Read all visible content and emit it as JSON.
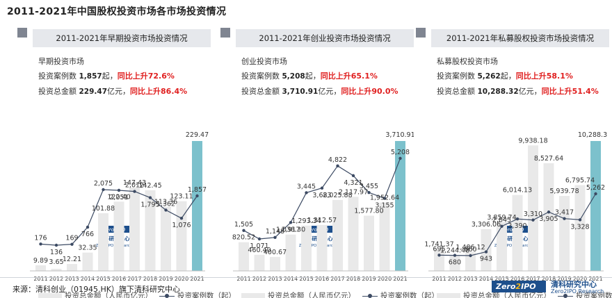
{
  "page_title": "2011-2021年中国股权投资市场各市场投资情况",
  "legend": {
    "bar_label": "投资总金额（人民币亿元）",
    "line_label": "投资案例数（起）"
  },
  "source": "来源：清科创业（01945.HK）旗下清科研究中心",
  "logo": {
    "zero": "Zero",
    "two": "2",
    "ipo": "IPO",
    "cn": "清科研究中心",
    "en": "Zero2IPO Research"
  },
  "watermark": {
    "zero": "Zero2IPO",
    "cn": "清科研究中心",
    "en": "Zero2IPO Research"
  },
  "colors": {
    "bar": "#e9e9e9",
    "bar_highlight": "#7cc1cc",
    "line": "#3c4a63"
  },
  "panels": [
    {
      "header": "2011-2021年早期投资市场投资情况",
      "market": "早期投资市场",
      "cases_prefix": "投资案例数 ",
      "cases": "1,857",
      "cases_suffix": "起，",
      "cases_growth": "同比上升72.6%",
      "amount_prefix": "投资总金额 ",
      "amount": "229.47",
      "amount_suffix": "亿元，",
      "amount_growth": "同比上升86.4%"
    },
    {
      "header": "2011-2021年创业投资市场投资情况",
      "market": "创业投资市场",
      "cases_prefix": "投资案例数 ",
      "cases": "5,208",
      "cases_suffix": "起，",
      "cases_growth": "同比上升65.1%",
      "amount_prefix": "投资总金额 ",
      "amount": "3,710.91",
      "amount_suffix": "亿元，",
      "amount_growth": "同比上升90.0%"
    },
    {
      "header": "2011-2021年私募股权投资市场投资情况",
      "market": "私募股权投资市场",
      "cases_prefix": "投资案例数 ",
      "cases": "5,262",
      "cases_suffix": "起，",
      "cases_growth": "同比上升58.1%",
      "amount_prefix": "投资总金额 ",
      "amount": "10,288.32",
      "amount_suffix": "亿元，",
      "amount_growth": "同比上升51.4%"
    }
  ],
  "chart_data": [
    {
      "type": "bar",
      "title": "2011-2021年早期投资市场投资情况",
      "categories": [
        "2011",
        "2012",
        "2013",
        "2014",
        "2015",
        "2016",
        "2017",
        "2018",
        "2019",
        "2020",
        "2021"
      ],
      "series": [
        {
          "name": "投资总金额（人民币亿元）",
          "type": "bar",
          "values": [
            9.89,
            3.65,
            12.21,
            32.35,
            101.88,
            122.4,
            147.43,
            142.45,
            113.36,
            123.11,
            229.47
          ],
          "labels": [
            "9.89",
            "3.65",
            "12.21",
            "32.35",
            "101.88",
            "122.40",
            "147.43",
            "142.45",
            "113.36",
            "123.11",
            "229.47"
          ]
        },
        {
          "name": "投资案例数（起）",
          "type": "line",
          "values": [
            176,
            136,
            169,
            766,
            2075,
            2051,
            2012,
            1795,
            1362,
            1076,
            1857
          ],
          "labels": [
            "176",
            "136",
            "169",
            "766",
            "2,075",
            "2,051",
            "2,012",
            "1,795",
            "1,362",
            "1,076",
            "1,857"
          ]
        }
      ]
    },
    {
      "type": "bar",
      "title": "2011-2021年创业投资市场投资情况",
      "categories": [
        "2011",
        "2012",
        "2013",
        "2014",
        "2015",
        "2016",
        "2017",
        "2018",
        "2019",
        "2020",
        "2021"
      ],
      "series": [
        {
          "name": "投资总金额（人民币亿元）",
          "type": "bar",
          "values": [
            820.52,
            460.4,
            400.67,
            1038.3,
            1293.34,
            1312.57,
            2025.88,
            2117.97,
            1577.8,
            1952.64,
            3710.91
          ],
          "labels": [
            "820.52",
            "460.40",
            "400.67",
            "1,038.30",
            "1,293.34",
            "1,312.57",
            "2,025.88",
            "2,117.97",
            "1,577.80",
            "1,952.64",
            "3,710.91"
          ]
        },
        {
          "name": "投资案例数（起）",
          "type": "line",
          "values": [
            1505,
            1071,
            1148,
            1917,
            3445,
            3683,
            4822,
            4321,
            3455,
            3155,
            5208
          ],
          "labels": [
            "1,505",
            "1,071",
            "1,148",
            "1,917",
            "3,445",
            "3,683",
            "4,822",
            "4,321",
            "3,455",
            "3,155",
            "5,208"
          ]
        }
      ]
    },
    {
      "type": "bar",
      "title": "2011-2021年私募股权投资市场投资情况",
      "categories": [
        "2011",
        "2012",
        "2013",
        "2014",
        "2015",
        "2016",
        "2017",
        "2018",
        "2019",
        "2020",
        "2021"
      ],
      "series": [
        {
          "name": "投资总金额（人民币亿元）",
          "type": "bar",
          "values": [
            1741.37,
            1244.48,
            1486.12,
            3306.06,
            3859.74,
            6014.13,
            9938.18,
            8527.64,
            5939.78,
            6795.74,
            10288.32
          ],
          "labels": [
            "1,741.37",
            "1,244.48",
            "1,486.12",
            "3,306.06",
            "3,859.74",
            "6,014.13",
            "9,938.18",
            "8,527.64",
            "5,939.78",
            "6,795.74",
            "10,288.3 2"
          ]
        },
        {
          "name": "投资案例数（起）",
          "type": "line",
          "values": [
            695,
            680,
            660,
            943,
            2845,
            3390,
            3310,
            3905,
            3417,
            3328,
            5262
          ],
          "labels": [
            "695",
            "680",
            "660",
            "943",
            "2,845",
            "3,390",
            "3,310",
            "3,905",
            "3,417",
            "3,328",
            "5,262"
          ]
        }
      ]
    }
  ]
}
